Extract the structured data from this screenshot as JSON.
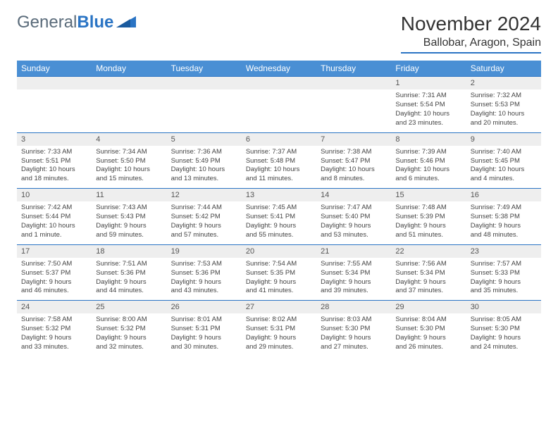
{
  "logo": {
    "part1": "General",
    "part2": "Blue"
  },
  "title": "November 2024",
  "location": "Ballobar, Aragon, Spain",
  "colors": {
    "header_bg": "#4a8fd4",
    "accent": "#2a74c4",
    "daynum_bg": "#eeeeee",
    "text": "#333333"
  },
  "dayHeaders": [
    "Sunday",
    "Monday",
    "Tuesday",
    "Wednesday",
    "Thursday",
    "Friday",
    "Saturday"
  ],
  "weeks": [
    [
      {
        "num": "",
        "lines": []
      },
      {
        "num": "",
        "lines": []
      },
      {
        "num": "",
        "lines": []
      },
      {
        "num": "",
        "lines": []
      },
      {
        "num": "",
        "lines": []
      },
      {
        "num": "1",
        "lines": [
          "Sunrise: 7:31 AM",
          "Sunset: 5:54 PM",
          "Daylight: 10 hours",
          "and 23 minutes."
        ]
      },
      {
        "num": "2",
        "lines": [
          "Sunrise: 7:32 AM",
          "Sunset: 5:53 PM",
          "Daylight: 10 hours",
          "and 20 minutes."
        ]
      }
    ],
    [
      {
        "num": "3",
        "lines": [
          "Sunrise: 7:33 AM",
          "Sunset: 5:51 PM",
          "Daylight: 10 hours",
          "and 18 minutes."
        ]
      },
      {
        "num": "4",
        "lines": [
          "Sunrise: 7:34 AM",
          "Sunset: 5:50 PM",
          "Daylight: 10 hours",
          "and 15 minutes."
        ]
      },
      {
        "num": "5",
        "lines": [
          "Sunrise: 7:36 AM",
          "Sunset: 5:49 PM",
          "Daylight: 10 hours",
          "and 13 minutes."
        ]
      },
      {
        "num": "6",
        "lines": [
          "Sunrise: 7:37 AM",
          "Sunset: 5:48 PM",
          "Daylight: 10 hours",
          "and 11 minutes."
        ]
      },
      {
        "num": "7",
        "lines": [
          "Sunrise: 7:38 AM",
          "Sunset: 5:47 PM",
          "Daylight: 10 hours",
          "and 8 minutes."
        ]
      },
      {
        "num": "8",
        "lines": [
          "Sunrise: 7:39 AM",
          "Sunset: 5:46 PM",
          "Daylight: 10 hours",
          "and 6 minutes."
        ]
      },
      {
        "num": "9",
        "lines": [
          "Sunrise: 7:40 AM",
          "Sunset: 5:45 PM",
          "Daylight: 10 hours",
          "and 4 minutes."
        ]
      }
    ],
    [
      {
        "num": "10",
        "lines": [
          "Sunrise: 7:42 AM",
          "Sunset: 5:44 PM",
          "Daylight: 10 hours",
          "and 1 minute."
        ]
      },
      {
        "num": "11",
        "lines": [
          "Sunrise: 7:43 AM",
          "Sunset: 5:43 PM",
          "Daylight: 9 hours",
          "and 59 minutes."
        ]
      },
      {
        "num": "12",
        "lines": [
          "Sunrise: 7:44 AM",
          "Sunset: 5:42 PM",
          "Daylight: 9 hours",
          "and 57 minutes."
        ]
      },
      {
        "num": "13",
        "lines": [
          "Sunrise: 7:45 AM",
          "Sunset: 5:41 PM",
          "Daylight: 9 hours",
          "and 55 minutes."
        ]
      },
      {
        "num": "14",
        "lines": [
          "Sunrise: 7:47 AM",
          "Sunset: 5:40 PM",
          "Daylight: 9 hours",
          "and 53 minutes."
        ]
      },
      {
        "num": "15",
        "lines": [
          "Sunrise: 7:48 AM",
          "Sunset: 5:39 PM",
          "Daylight: 9 hours",
          "and 51 minutes."
        ]
      },
      {
        "num": "16",
        "lines": [
          "Sunrise: 7:49 AM",
          "Sunset: 5:38 PM",
          "Daylight: 9 hours",
          "and 48 minutes."
        ]
      }
    ],
    [
      {
        "num": "17",
        "lines": [
          "Sunrise: 7:50 AM",
          "Sunset: 5:37 PM",
          "Daylight: 9 hours",
          "and 46 minutes."
        ]
      },
      {
        "num": "18",
        "lines": [
          "Sunrise: 7:51 AM",
          "Sunset: 5:36 PM",
          "Daylight: 9 hours",
          "and 44 minutes."
        ]
      },
      {
        "num": "19",
        "lines": [
          "Sunrise: 7:53 AM",
          "Sunset: 5:36 PM",
          "Daylight: 9 hours",
          "and 43 minutes."
        ]
      },
      {
        "num": "20",
        "lines": [
          "Sunrise: 7:54 AM",
          "Sunset: 5:35 PM",
          "Daylight: 9 hours",
          "and 41 minutes."
        ]
      },
      {
        "num": "21",
        "lines": [
          "Sunrise: 7:55 AM",
          "Sunset: 5:34 PM",
          "Daylight: 9 hours",
          "and 39 minutes."
        ]
      },
      {
        "num": "22",
        "lines": [
          "Sunrise: 7:56 AM",
          "Sunset: 5:34 PM",
          "Daylight: 9 hours",
          "and 37 minutes."
        ]
      },
      {
        "num": "23",
        "lines": [
          "Sunrise: 7:57 AM",
          "Sunset: 5:33 PM",
          "Daylight: 9 hours",
          "and 35 minutes."
        ]
      }
    ],
    [
      {
        "num": "24",
        "lines": [
          "Sunrise: 7:58 AM",
          "Sunset: 5:32 PM",
          "Daylight: 9 hours",
          "and 33 minutes."
        ]
      },
      {
        "num": "25",
        "lines": [
          "Sunrise: 8:00 AM",
          "Sunset: 5:32 PM",
          "Daylight: 9 hours",
          "and 32 minutes."
        ]
      },
      {
        "num": "26",
        "lines": [
          "Sunrise: 8:01 AM",
          "Sunset: 5:31 PM",
          "Daylight: 9 hours",
          "and 30 minutes."
        ]
      },
      {
        "num": "27",
        "lines": [
          "Sunrise: 8:02 AM",
          "Sunset: 5:31 PM",
          "Daylight: 9 hours",
          "and 29 minutes."
        ]
      },
      {
        "num": "28",
        "lines": [
          "Sunrise: 8:03 AM",
          "Sunset: 5:30 PM",
          "Daylight: 9 hours",
          "and 27 minutes."
        ]
      },
      {
        "num": "29",
        "lines": [
          "Sunrise: 8:04 AM",
          "Sunset: 5:30 PM",
          "Daylight: 9 hours",
          "and 26 minutes."
        ]
      },
      {
        "num": "30",
        "lines": [
          "Sunrise: 8:05 AM",
          "Sunset: 5:30 PM",
          "Daylight: 9 hours",
          "and 24 minutes."
        ]
      }
    ]
  ]
}
